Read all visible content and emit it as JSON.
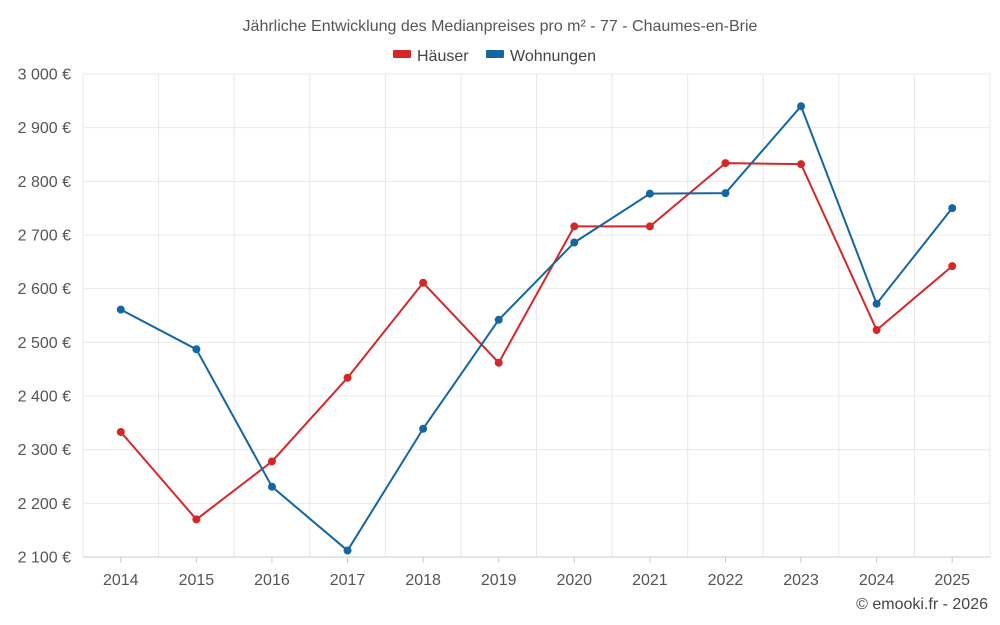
{
  "chart_data": {
    "type": "line",
    "title": "Jährliche Entwicklung des Medianpreises pro m² - 77 - Chaumes-en-Brie",
    "categories": [
      "2014",
      "2015",
      "2016",
      "2017",
      "2018",
      "2019",
      "2020",
      "2021",
      "2022",
      "2023",
      "2024",
      "2025"
    ],
    "series": [
      {
        "name": "Häuser",
        "color": "#d62728",
        "values": [
          2333,
          2170,
          2278,
          2434,
          2611,
          2462,
          2716,
          2716,
          2834,
          2832,
          2523,
          2642
        ]
      },
      {
        "name": "Wohnungen",
        "color": "#1565a0",
        "values": [
          2561,
          2487,
          2231,
          2112,
          2339,
          2542,
          2686,
          2777,
          2778,
          2940,
          2572,
          2750
        ]
      }
    ],
    "yticks": [
      2100,
      2200,
      2300,
      2400,
      2500,
      2600,
      2700,
      2800,
      2900,
      3000
    ],
    "ytick_labels": [
      "2 100 €",
      "2 200 €",
      "2 300 €",
      "2 400 €",
      "2 500 €",
      "2 600 €",
      "2 700 €",
      "2 800 €",
      "2 900 €",
      "3 000 €"
    ],
    "ylim": [
      2100,
      3000
    ],
    "xlabel": "",
    "ylabel": "",
    "grid": true,
    "legend_position": "top-center"
  },
  "credit": "© emooki.fr - 2026"
}
